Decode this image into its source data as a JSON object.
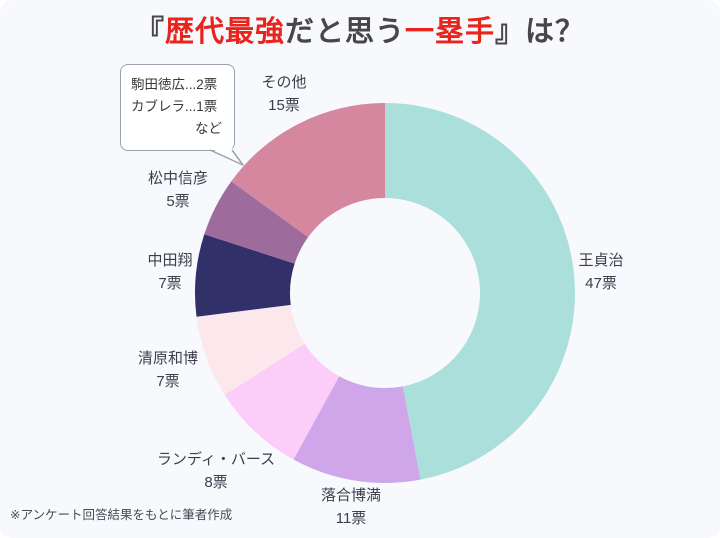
{
  "title": {
    "segments": [
      {
        "text": "『",
        "style": "dark"
      },
      {
        "text": "歴代最強",
        "style": "red"
      },
      {
        "text": "だと思う",
        "style": "dark"
      },
      {
        "text": "一塁手",
        "style": "red"
      },
      {
        "text": "』は？",
        "style": "dark"
      }
    ],
    "full_text": "『歴代最強だと思う一塁手』は？"
  },
  "colors": {
    "background": "#f8f9fd",
    "title_dark": "#474747",
    "title_red": "#e7251d",
    "label_text": "#3e3e4b",
    "bubble_border": "#9aa2ae"
  },
  "chart_data": {
    "type": "pie",
    "subtype": "donut",
    "title": "『歴代最強だと思う一塁手』は？",
    "unit": "票",
    "total_votes": 100,
    "start_angle_deg": 0,
    "direction": "clockwise",
    "legend_position": "labels-around-donut",
    "items": [
      {
        "name": "王貞治",
        "value": 47,
        "votes_label": "47票",
        "color": "#abdfdb"
      },
      {
        "name": "落合博満",
        "value": 11,
        "votes_label": "11票",
        "color": "#cfa6ea"
      },
      {
        "name": "ランディ・バース",
        "value": 8,
        "votes_label": "8票",
        "color": "#fccdf8"
      },
      {
        "name": "清原和博",
        "value": 7,
        "votes_label": "7票",
        "color": "#fce8ec"
      },
      {
        "name": "中田翔",
        "value": 7,
        "votes_label": "7票",
        "color": "#323069"
      },
      {
        "name": "松中信彦",
        "value": 5,
        "votes_label": "5票",
        "color": "#9e6b9d"
      },
      {
        "name": "その他",
        "value": 15,
        "votes_label": "15票",
        "color": "#d5879f"
      }
    ]
  },
  "annotation_bubble": {
    "line1": "駒田徳広...2票",
    "line2": "カブレラ...1票",
    "suffix": "など",
    "points_to": "松中信彦"
  },
  "footer": {
    "note": "※アンケート回答結果をもとに筆者作成"
  }
}
